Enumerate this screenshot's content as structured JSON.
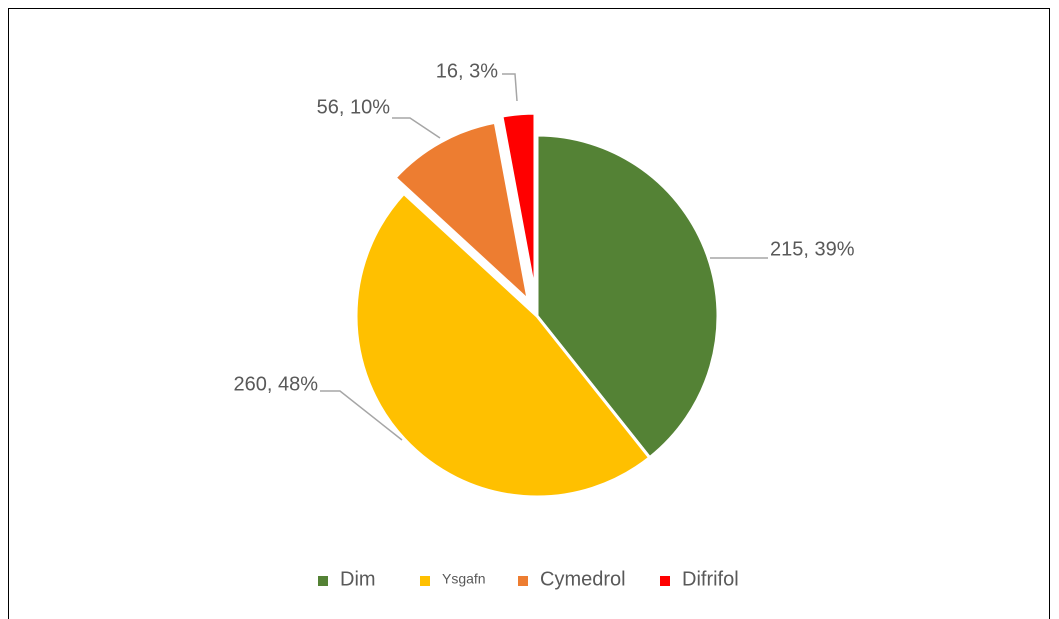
{
  "chart_data": {
    "type": "pie",
    "categories": [
      "Dim",
      "Ysgafn",
      "Cymedrol",
      "Difrifol"
    ],
    "values": [
      215,
      260,
      56,
      16
    ],
    "value_labels": [
      "215, 39%",
      "260, 48%",
      "56, 10%",
      "16, 3%"
    ],
    "colors": [
      "#548235",
      "#ffc000",
      "#ed7d31",
      "#ff0000"
    ],
    "legend": "bottom"
  }
}
